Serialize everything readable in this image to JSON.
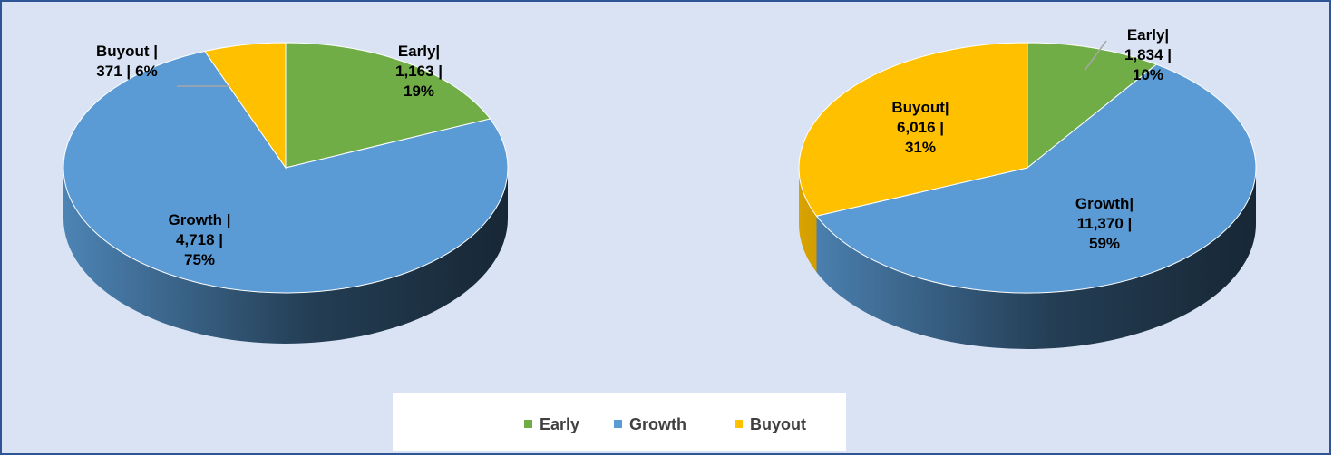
{
  "chart_data": [
    {
      "type": "pie",
      "categories": [
        "Early",
        "Growth",
        "Buyout"
      ],
      "colors": [
        "#70ad47",
        "#5b9bd5",
        "#ffc000"
      ],
      "values": [
        1163,
        4718,
        371
      ],
      "value_labels": [
        "1,163 |",
        "4,718 |",
        "371 |"
      ],
      "name_labels": [
        "Early|",
        "Growth |",
        "Buyout |"
      ],
      "percents": [
        19,
        75,
        6
      ],
      "percent_labels": [
        "19%",
        "75%",
        "6%"
      ]
    },
    {
      "type": "pie",
      "categories": [
        "Early",
        "Growth",
        "Buyout"
      ],
      "colors": [
        "#70ad47",
        "#5b9bd5",
        "#ffc000"
      ],
      "values": [
        1834,
        11370,
        6016
      ],
      "value_labels": [
        "1,834 |",
        "11,370 |",
        "6,016 |"
      ],
      "name_labels": [
        "Early|",
        "Growth|",
        "Buyout|"
      ],
      "percents": [
        10,
        59,
        31
      ],
      "percent_labels": [
        "10%",
        "59%",
        "31%"
      ]
    }
  ]
}
